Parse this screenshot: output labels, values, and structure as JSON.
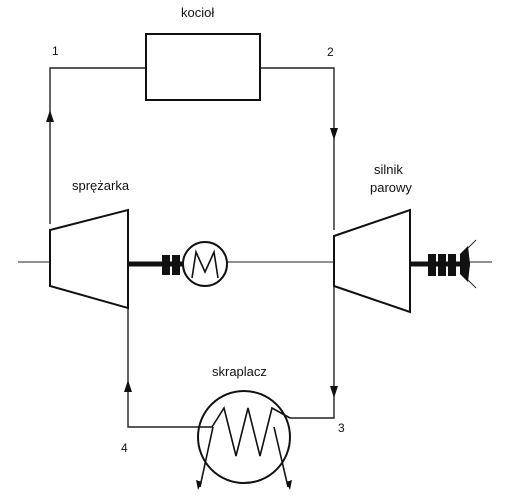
{
  "labels": {
    "boiler": "kocioł",
    "compressor": "sprężarka",
    "steam_engine_line1": "silnik",
    "steam_engine_line2": "parowy",
    "condenser": "skraplacz"
  },
  "points": {
    "p1": "1",
    "p2": "2",
    "p3": "3",
    "p4": "4"
  },
  "icons": {
    "motor": "motor-m-icon",
    "coupling": "shaft-coupling-icon",
    "condenser_coil": "coil-icon"
  }
}
